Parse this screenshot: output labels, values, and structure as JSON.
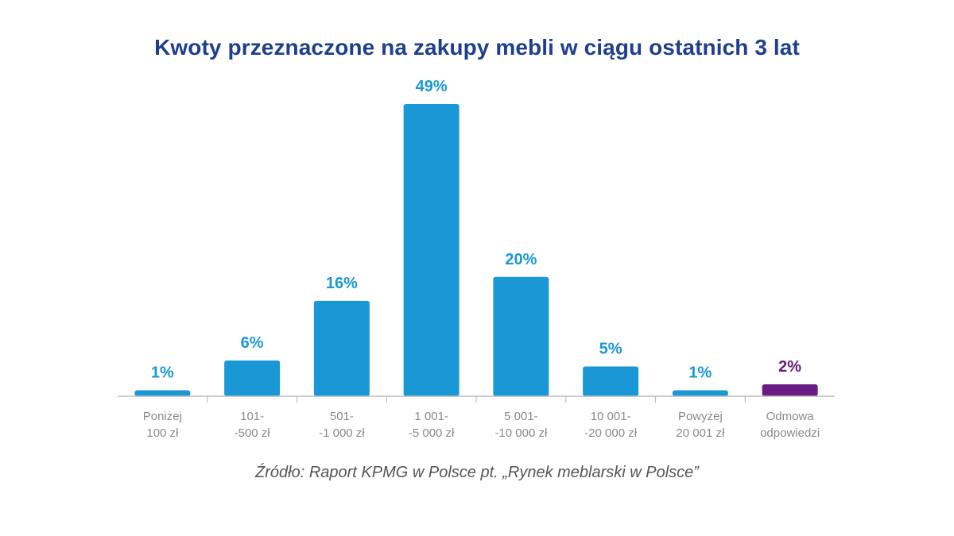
{
  "chart_data": {
    "type": "bar",
    "title": "Kwoty przeznaczone na zakupy mebli w ciągu ostatnich 3 lat",
    "source": "Źródło: Raport KPMG w Polsce pt. „Rynek meblarski w Polsce”",
    "categories": [
      [
        "Poniżej",
        "100 zł"
      ],
      [
        "101-",
        "-500 zł"
      ],
      [
        "501-",
        "-1 000 zł"
      ],
      [
        "1 001-",
        "-5 000 zł"
      ],
      [
        "5 001-",
        "-10 000 zł"
      ],
      [
        "10 001-",
        "-20 000 zł"
      ],
      [
        "Powyżej",
        "20 001 zł"
      ],
      [
        "Odmowa",
        "odpowiedzi"
      ]
    ],
    "values": [
      1,
      6,
      16,
      49,
      20,
      5,
      1,
      2
    ],
    "value_labels": [
      "1%",
      "6%",
      "16%",
      "49%",
      "20%",
      "5%",
      "1%",
      "2%"
    ],
    "unit": "%",
    "ylim": [
      0,
      49
    ],
    "grid": false,
    "legend": "none",
    "colors": {
      "bar": "#1a98d5",
      "bar_highlight": "#6a1b82",
      "title": "#1f3f8c",
      "axis": "#bdbdbd",
      "category_text": "#8a8a8a"
    },
    "highlight_index": 7
  }
}
